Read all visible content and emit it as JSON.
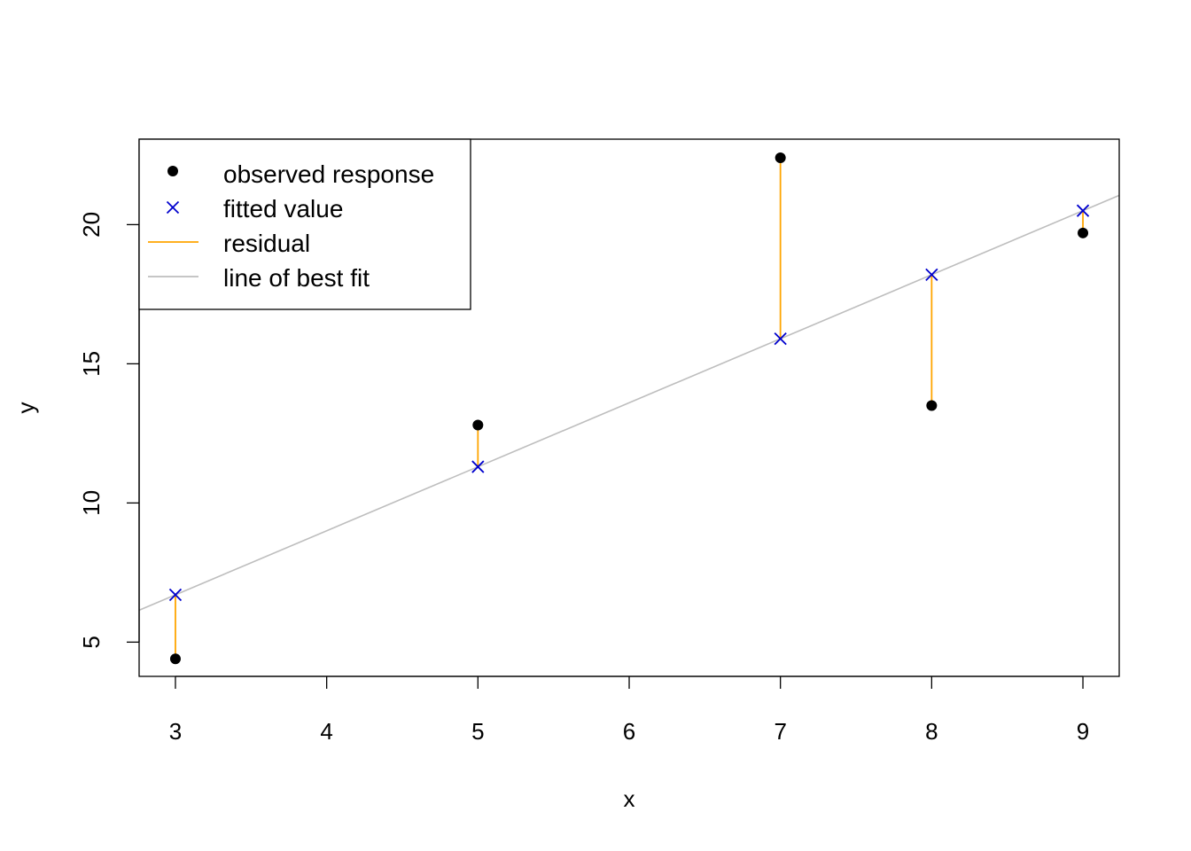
{
  "chart_data": {
    "type": "scatter",
    "xlabel": "x",
    "ylabel": "y",
    "xlim": [
      2.76,
      9.24
    ],
    "ylim": [
      3.77,
      23.07
    ],
    "xticks": [
      3,
      4,
      5,
      6,
      7,
      8,
      9
    ],
    "yticks": [
      5,
      10,
      15,
      20
    ],
    "grid": false,
    "legend_position": "top-left",
    "line_of_best_fit": {
      "slope": 2.3,
      "intercept": -0.2
    },
    "observed": [
      {
        "x": 3,
        "y": 4.4
      },
      {
        "x": 5,
        "y": 12.8
      },
      {
        "x": 7,
        "y": 22.4
      },
      {
        "x": 8,
        "y": 13.5
      },
      {
        "x": 9,
        "y": 19.7
      }
    ],
    "fitted": [
      {
        "x": 3,
        "y": 6.7
      },
      {
        "x": 5,
        "y": 11.3
      },
      {
        "x": 7,
        "y": 15.9
      },
      {
        "x": 8,
        "y": 18.2
      },
      {
        "x": 9,
        "y": 20.5
      }
    ],
    "legend": [
      {
        "label": "observed response",
        "symbol": "dot",
        "color": "#000000"
      },
      {
        "label": "fitted value",
        "symbol": "cross",
        "color": "#0000CD"
      },
      {
        "label": "residual",
        "symbol": "line",
        "color": "#FFA500"
      },
      {
        "label": "line of best fit",
        "symbol": "line",
        "color": "#BEBEBE"
      }
    ],
    "colors": {
      "observed": "#000000",
      "fitted": "#0000CD",
      "residual": "#FFA500",
      "fit_line": "#BEBEBE",
      "axis": "#000000"
    }
  }
}
